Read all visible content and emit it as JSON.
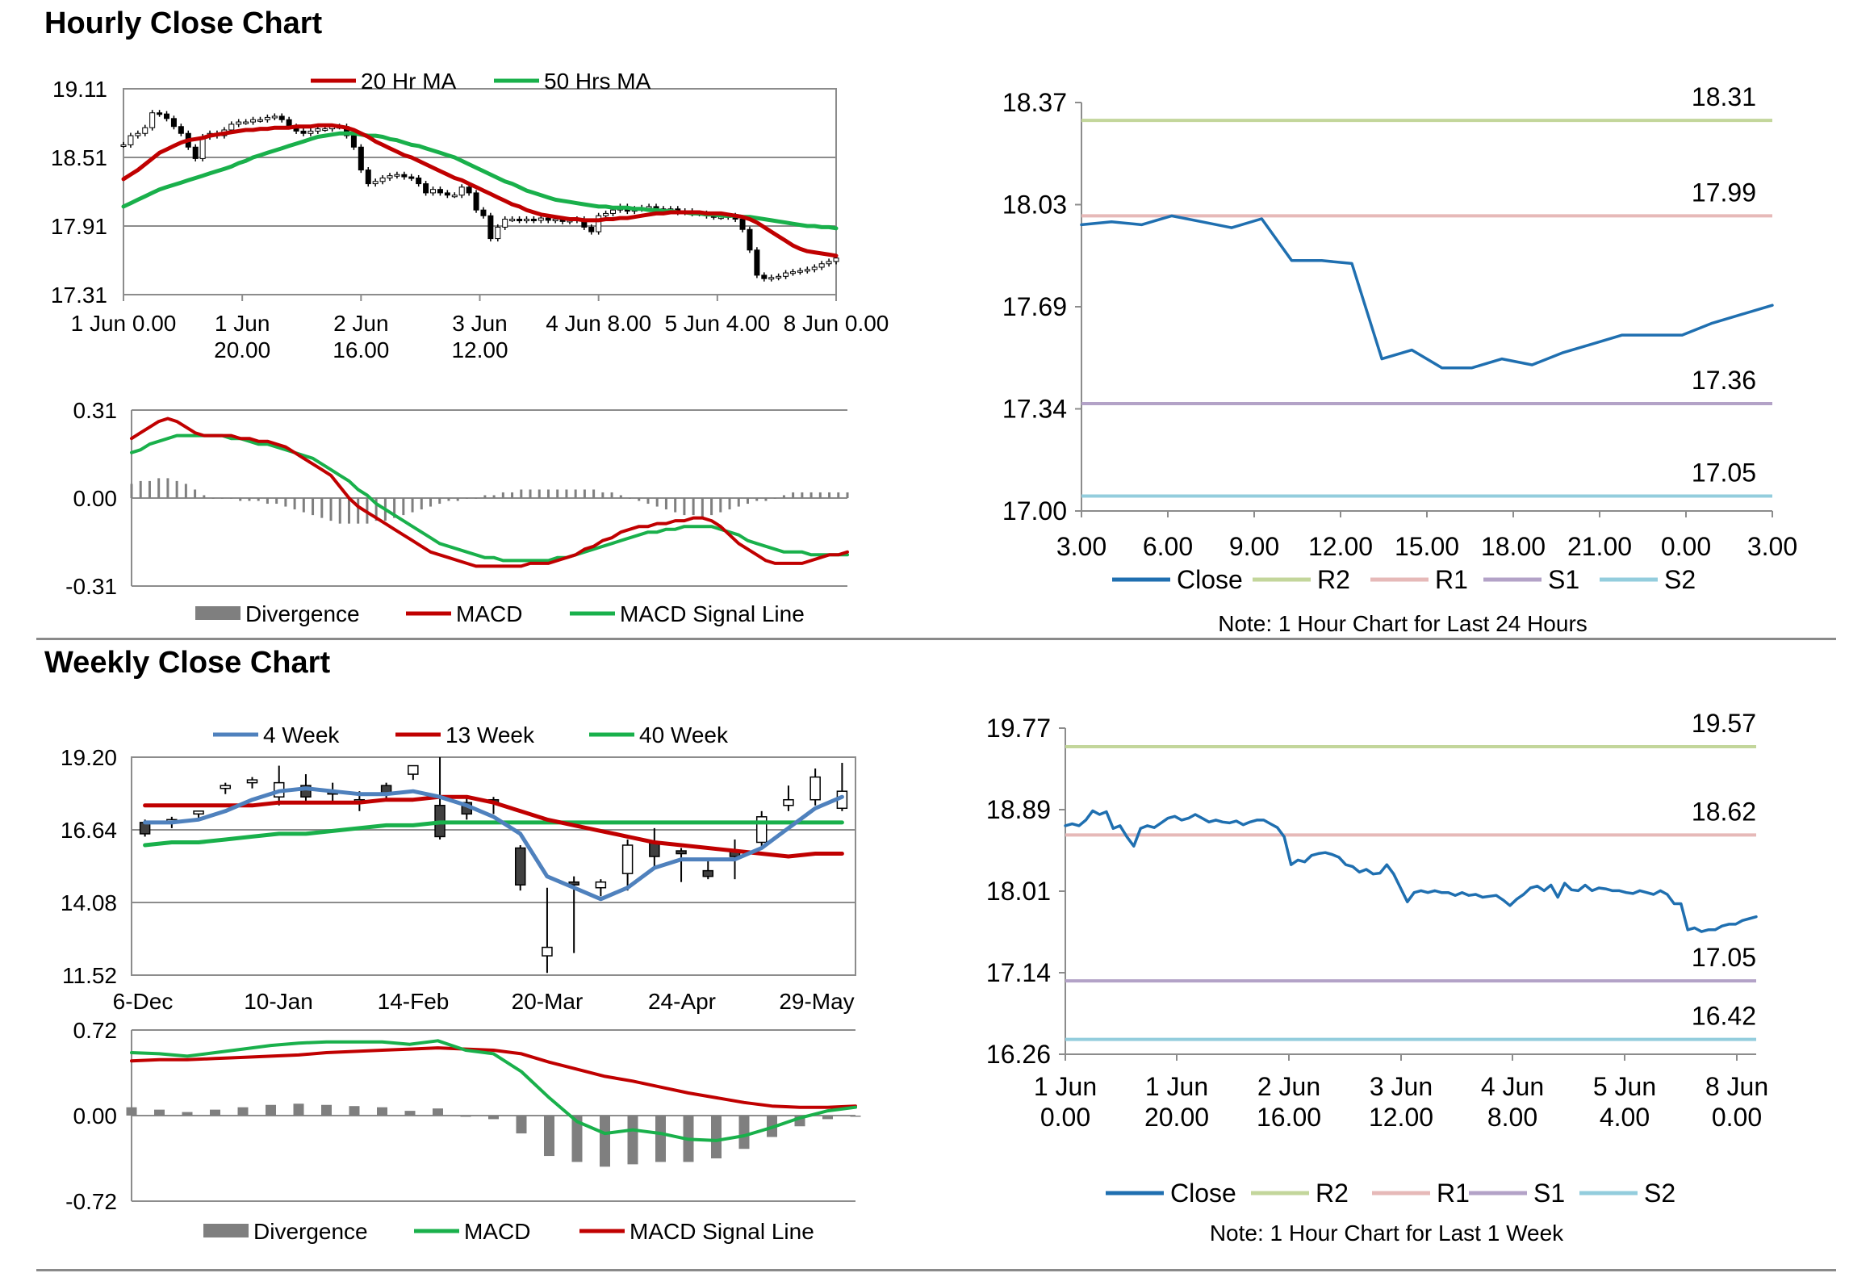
{
  "sections": {
    "hourly_title": "Hourly Close Chart",
    "weekly_title": "Weekly Close Chart"
  },
  "colors": {
    "ma_red": "#c00000",
    "ma_green": "#19b04b",
    "blue_line": "#4f81bd",
    "close_blue": "#1f6fb0",
    "r2": "#c3d69b",
    "r1": "#e6b9b8",
    "s1": "#b3a2c7",
    "s2": "#93cddd",
    "divergence": "#7f7f7f",
    "grid": "#8c8c8c"
  },
  "chart_data": [
    {
      "id": "hourly_candles",
      "type": "candlestick",
      "legend": [
        "20 Hr MA",
        "50 Hrs MA"
      ],
      "y_ticks": [
        "19.11",
        "18.51",
        "17.91",
        "17.31"
      ],
      "ylim": [
        17.31,
        19.11
      ],
      "x_ticks": [
        [
          "1 Jun 0.00",
          ""
        ],
        [
          "1 Jun",
          "20.00"
        ],
        [
          "2 Jun",
          "16.00"
        ],
        [
          "3 Jun",
          "12.00"
        ],
        [
          "4 Jun 8.00",
          ""
        ],
        [
          "5 Jun 4.00",
          ""
        ],
        [
          "8 Jun 0.00",
          ""
        ]
      ],
      "close": [
        18.62,
        18.7,
        18.72,
        18.77,
        18.9,
        18.89,
        18.85,
        18.78,
        18.72,
        18.6,
        18.5,
        18.69,
        18.72,
        18.7,
        18.75,
        18.8,
        18.82,
        18.82,
        18.84,
        18.84,
        18.86,
        18.87,
        18.84,
        18.78,
        18.74,
        18.72,
        18.74,
        18.76,
        18.76,
        18.78,
        18.78,
        18.7,
        18.6,
        18.4,
        18.28,
        18.3,
        18.33,
        18.35,
        18.36,
        18.34,
        18.33,
        18.28,
        18.2,
        18.23,
        18.2,
        18.18,
        18.18,
        18.25,
        18.2,
        18.05,
        18.0,
        17.8,
        17.9,
        17.97,
        17.97,
        17.96,
        17.97,
        17.96,
        17.98,
        17.96,
        17.97,
        17.95,
        17.96,
        17.97,
        17.9,
        17.86,
        18.0,
        18.02,
        18.05,
        18.08,
        18.04,
        18.06,
        18.07,
        18.08,
        18.06,
        18.04,
        18.06,
        18.03,
        18.04,
        18.02,
        18.02,
        18.0,
        17.99,
        17.99,
        18.0,
        17.97,
        17.88,
        17.7,
        17.48,
        17.45,
        17.46,
        17.47,
        17.5,
        17.51,
        17.52,
        17.53,
        17.55,
        17.58,
        17.6,
        17.63
      ],
      "ma20": [
        18.32,
        18.36,
        18.4,
        18.45,
        18.5,
        18.55,
        18.58,
        18.61,
        18.64,
        18.66,
        18.67,
        18.68,
        18.7,
        18.71,
        18.72,
        18.73,
        18.74,
        18.75,
        18.75,
        18.76,
        18.76,
        18.77,
        18.77,
        18.77,
        18.78,
        18.78,
        18.78,
        18.79,
        18.79,
        18.79,
        18.78,
        18.77,
        18.75,
        18.72,
        18.69,
        18.65,
        18.62,
        18.59,
        18.56,
        18.53,
        18.51,
        18.48,
        18.45,
        18.42,
        18.39,
        18.36,
        18.33,
        18.31,
        18.28,
        18.25,
        18.22,
        18.19,
        18.16,
        18.13,
        18.1,
        18.08,
        18.05,
        18.03,
        18.01,
        18.0,
        17.99,
        17.98,
        17.97,
        17.97,
        17.96,
        17.96,
        17.96,
        17.97,
        17.97,
        17.98,
        17.98,
        17.99,
        18.0,
        18.01,
        18.02,
        18.02,
        18.03,
        18.03,
        18.03,
        18.03,
        18.03,
        18.02,
        18.02,
        18.02,
        18.01,
        18.0,
        17.99,
        17.97,
        17.94,
        17.9,
        17.86,
        17.82,
        17.78,
        17.74,
        17.71,
        17.69,
        17.68,
        17.67,
        17.66,
        17.65
      ],
      "ma50": [
        18.08,
        18.11,
        18.14,
        18.17,
        18.2,
        18.23,
        18.25,
        18.27,
        18.29,
        18.31,
        18.33,
        18.35,
        18.37,
        18.39,
        18.41,
        18.43,
        18.46,
        18.48,
        18.51,
        18.53,
        18.55,
        18.57,
        18.59,
        18.61,
        18.63,
        18.65,
        18.67,
        18.69,
        18.7,
        18.71,
        18.72,
        18.72,
        18.72,
        18.71,
        18.7,
        18.7,
        18.69,
        18.67,
        18.66,
        18.64,
        18.62,
        18.61,
        18.59,
        18.57,
        18.55,
        18.53,
        18.51,
        18.48,
        18.45,
        18.42,
        18.39,
        18.36,
        18.33,
        18.3,
        18.28,
        18.25,
        18.22,
        18.2,
        18.18,
        18.16,
        18.14,
        18.13,
        18.12,
        18.11,
        18.1,
        18.09,
        18.08,
        18.08,
        18.07,
        18.07,
        18.07,
        18.06,
        18.06,
        18.05,
        18.05,
        18.04,
        18.04,
        18.03,
        18.03,
        18.02,
        18.02,
        18.01,
        18.01,
        18.0,
        18.0,
        18.0,
        17.99,
        17.99,
        17.98,
        17.97,
        17.96,
        17.95,
        17.94,
        17.93,
        17.92,
        17.91,
        17.91,
        17.9,
        17.9,
        17.89
      ]
    },
    {
      "id": "hourly_macd",
      "type": "macd",
      "y_ticks": [
        "0.31",
        "0.00",
        "-0.31"
      ],
      "ylim": [
        -0.31,
        0.31
      ],
      "legend": [
        "Divergence",
        "MACD",
        "MACD Signal Line"
      ],
      "macd": [
        0.21,
        0.23,
        0.25,
        0.27,
        0.28,
        0.27,
        0.25,
        0.23,
        0.22,
        0.22,
        0.22,
        0.22,
        0.21,
        0.21,
        0.2,
        0.2,
        0.19,
        0.18,
        0.16,
        0.14,
        0.12,
        0.1,
        0.08,
        0.04,
        0.0,
        -0.03,
        -0.05,
        -0.07,
        -0.09,
        -0.11,
        -0.13,
        -0.15,
        -0.17,
        -0.19,
        -0.2,
        -0.21,
        -0.22,
        -0.23,
        -0.24,
        -0.24,
        -0.24,
        -0.24,
        -0.24,
        -0.24,
        -0.23,
        -0.23,
        -0.23,
        -0.22,
        -0.21,
        -0.2,
        -0.18,
        -0.17,
        -0.15,
        -0.14,
        -0.12,
        -0.11,
        -0.1,
        -0.1,
        -0.09,
        -0.09,
        -0.08,
        -0.08,
        -0.07,
        -0.07,
        -0.08,
        -0.1,
        -0.13,
        -0.16,
        -0.18,
        -0.2,
        -0.22,
        -0.23,
        -0.23,
        -0.23,
        -0.23,
        -0.22,
        -0.21,
        -0.2,
        -0.2,
        -0.19
      ],
      "signal": [
        0.16,
        0.17,
        0.19,
        0.2,
        0.21,
        0.22,
        0.22,
        0.22,
        0.22,
        0.22,
        0.22,
        0.21,
        0.21,
        0.2,
        0.19,
        0.19,
        0.18,
        0.17,
        0.16,
        0.15,
        0.14,
        0.12,
        0.1,
        0.08,
        0.06,
        0.03,
        0.01,
        -0.02,
        -0.04,
        -0.06,
        -0.08,
        -0.1,
        -0.12,
        -0.14,
        -0.16,
        -0.17,
        -0.18,
        -0.19,
        -0.2,
        -0.21,
        -0.21,
        -0.22,
        -0.22,
        -0.22,
        -0.22,
        -0.22,
        -0.22,
        -0.21,
        -0.21,
        -0.2,
        -0.19,
        -0.18,
        -0.17,
        -0.16,
        -0.15,
        -0.14,
        -0.13,
        -0.12,
        -0.12,
        -0.11,
        -0.11,
        -0.1,
        -0.1,
        -0.1,
        -0.1,
        -0.11,
        -0.12,
        -0.13,
        -0.15,
        -0.16,
        -0.17,
        -0.18,
        -0.19,
        -0.19,
        -0.19,
        -0.2,
        -0.2,
        -0.2,
        -0.2,
        -0.2
      ],
      "divergence": [
        0.05,
        0.06,
        0.06,
        0.07,
        0.07,
        0.06,
        0.05,
        0.03,
        0.01,
        0.0,
        0.0,
        0.0,
        -0.01,
        -0.01,
        -0.01,
        -0.02,
        -0.02,
        -0.03,
        -0.04,
        -0.05,
        -0.06,
        -0.07,
        -0.08,
        -0.09,
        -0.09,
        -0.09,
        -0.09,
        -0.08,
        -0.08,
        -0.07,
        -0.06,
        -0.05,
        -0.04,
        -0.03,
        -0.02,
        -0.01,
        -0.01,
        0.0,
        0.0,
        0.01,
        0.01,
        0.02,
        0.02,
        0.03,
        0.03,
        0.03,
        0.03,
        0.03,
        0.03,
        0.03,
        0.03,
        0.03,
        0.02,
        0.02,
        0.01,
        0.0,
        -0.01,
        -0.02,
        -0.03,
        -0.04,
        -0.05,
        -0.06,
        -0.06,
        -0.07,
        -0.06,
        -0.05,
        -0.04,
        -0.03,
        -0.02,
        -0.01,
        -0.01,
        0.0,
        0.01,
        0.02,
        0.02,
        0.02,
        0.02,
        0.02,
        0.02,
        0.02
      ]
    },
    {
      "id": "hourly_24h",
      "type": "line",
      "y_ticks": [
        "18.37",
        "18.03",
        "17.69",
        "17.34",
        "17.00"
      ],
      "ylim": [
        17.0,
        18.37
      ],
      "x_ticks": [
        "3.00",
        "6.00",
        "9.00",
        "12.00",
        "15.00",
        "18.00",
        "21.00",
        "0.00",
        "3.00"
      ],
      "close": [
        17.96,
        17.97,
        17.96,
        17.99,
        17.97,
        17.95,
        17.98,
        17.84,
        17.84,
        17.83,
        17.51,
        17.54,
        17.48,
        17.48,
        17.51,
        17.49,
        17.53,
        17.56,
        17.59,
        17.59,
        17.59,
        17.63,
        17.66,
        17.69
      ],
      "levels": [
        {
          "name": "R2",
          "value": 18.31,
          "label": "18.31"
        },
        {
          "name": "R1",
          "value": 17.99,
          "label": "17.99"
        },
        {
          "name": "S1",
          "value": 17.36,
          "label": "17.36"
        },
        {
          "name": "S2",
          "value": 17.05,
          "label": "17.05"
        }
      ],
      "legend": [
        "Close",
        "R2",
        "R1",
        "S1",
        "S2"
      ],
      "note": "Note: 1 Hour Chart for Last 24 Hours"
    },
    {
      "id": "weekly_candles",
      "type": "candlestick",
      "legend": [
        "4 Week",
        "13 Week",
        "40 Week"
      ],
      "y_ticks": [
        "19.20",
        "16.64",
        "14.08",
        "11.52"
      ],
      "ylim": [
        11.52,
        19.2
      ],
      "x_ticks": [
        "6-Dec",
        "10-Jan",
        "14-Feb",
        "20-Mar",
        "24-Apr",
        "29-May"
      ],
      "candles": [
        {
          "o": 16.9,
          "h": 17.0,
          "c": 16.5,
          "l": 16.4
        },
        {
          "o": 16.9,
          "h": 17.1,
          "c": 17.0,
          "l": 16.7
        },
        {
          "o": 17.2,
          "h": 17.3,
          "c": 17.3,
          "l": 17.0
        },
        {
          "o": 18.1,
          "h": 18.3,
          "c": 18.2,
          "l": 17.9
        },
        {
          "o": 18.3,
          "h": 18.5,
          "c": 18.4,
          "l": 18.1
        },
        {
          "o": 17.8,
          "h": 18.9,
          "c": 18.3,
          "l": 17.5
        },
        {
          "o": 18.2,
          "h": 18.6,
          "c": 17.8,
          "l": 17.6
        },
        {
          "o": 18.0,
          "h": 18.3,
          "c": 17.9,
          "l": 17.6
        },
        {
          "o": 17.6,
          "h": 18.0,
          "c": 17.7,
          "l": 17.3
        },
        {
          "o": 18.2,
          "h": 18.3,
          "c": 17.9,
          "l": 17.7
        },
        {
          "o": 18.6,
          "h": 18.9,
          "c": 18.9,
          "l": 18.4
        },
        {
          "o": 17.5,
          "h": 19.2,
          "c": 16.4,
          "l": 16.3
        },
        {
          "o": 17.6,
          "h": 17.8,
          "c": 17.2,
          "l": 17.0
        },
        {
          "o": 17.7,
          "h": 17.8,
          "c": 17.6,
          "l": 17.2
        },
        {
          "o": 16.0,
          "h": 16.1,
          "c": 14.7,
          "l": 14.5
        },
        {
          "o": 12.2,
          "h": 14.6,
          "c": 12.5,
          "l": 11.6
        },
        {
          "o": 14.8,
          "h": 15.0,
          "c": 14.7,
          "l": 12.3
        },
        {
          "o": 14.6,
          "h": 14.9,
          "c": 14.8,
          "l": 14.3
        },
        {
          "o": 15.1,
          "h": 16.3,
          "c": 16.1,
          "l": 14.5
        },
        {
          "o": 16.2,
          "h": 16.7,
          "c": 15.7,
          "l": 15.3
        },
        {
          "o": 15.9,
          "h": 16.0,
          "c": 15.8,
          "l": 14.8
        },
        {
          "o": 15.2,
          "h": 15.6,
          "c": 15.0,
          "l": 14.9
        },
        {
          "o": 15.9,
          "h": 16.3,
          "c": 15.7,
          "l": 14.9
        },
        {
          "o": 16.2,
          "h": 17.3,
          "c": 17.1,
          "l": 16.0
        },
        {
          "o": 17.5,
          "h": 18.2,
          "c": 17.7,
          "l": 17.3
        },
        {
          "o": 17.7,
          "h": 18.8,
          "c": 18.5,
          "l": 17.5
        },
        {
          "o": 17.4,
          "h": 19.0,
          "c": 18.0,
          "l": 17.3
        }
      ],
      "w4": [
        16.9,
        16.9,
        17.0,
        17.3,
        17.7,
        18.0,
        18.1,
        18.0,
        17.9,
        17.9,
        18.0,
        17.8,
        17.5,
        17.1,
        16.5,
        15.0,
        14.6,
        14.2,
        14.6,
        15.3,
        15.6,
        15.6,
        15.6,
        16.0,
        16.7,
        17.4,
        17.8
      ],
      "w13": [
        17.5,
        17.5,
        17.5,
        17.5,
        17.5,
        17.6,
        17.6,
        17.6,
        17.6,
        17.7,
        17.7,
        17.8,
        17.8,
        17.6,
        17.3,
        17.0,
        16.8,
        16.6,
        16.4,
        16.2,
        16.1,
        16.0,
        15.9,
        15.8,
        15.7,
        15.8,
        15.8
      ],
      "w40": [
        16.1,
        16.2,
        16.2,
        16.3,
        16.4,
        16.5,
        16.5,
        16.6,
        16.7,
        16.8,
        16.8,
        16.9,
        16.9,
        16.9,
        16.9,
        16.9,
        16.9,
        16.9,
        16.9,
        16.9,
        16.9,
        16.9,
        16.9,
        16.9,
        16.9,
        16.9,
        16.9
      ]
    },
    {
      "id": "weekly_macd",
      "type": "macd",
      "y_ticks": [
        "0.72",
        "0.00",
        "-0.72"
      ],
      "ylim": [
        -0.72,
        0.72
      ],
      "legend": [
        "Divergence",
        "MACD",
        "MACD Signal Line"
      ],
      "macd": [
        0.53,
        0.52,
        0.5,
        0.53,
        0.56,
        0.59,
        0.61,
        0.62,
        0.62,
        0.62,
        0.6,
        0.63,
        0.55,
        0.52,
        0.37,
        0.15,
        -0.05,
        -0.15,
        -0.12,
        -0.15,
        -0.2,
        -0.21,
        -0.17,
        -0.1,
        -0.02,
        0.04,
        0.07
      ],
      "signal": [
        0.46,
        0.47,
        0.47,
        0.48,
        0.49,
        0.5,
        0.51,
        0.53,
        0.54,
        0.55,
        0.56,
        0.57,
        0.56,
        0.55,
        0.52,
        0.45,
        0.39,
        0.33,
        0.29,
        0.24,
        0.19,
        0.15,
        0.11,
        0.08,
        0.07,
        0.07,
        0.08
      ],
      "divergence": [
        0.07,
        0.05,
        0.03,
        0.05,
        0.07,
        0.09,
        0.1,
        0.09,
        0.08,
        0.07,
        0.04,
        0.06,
        -0.01,
        -0.03,
        -0.15,
        -0.34,
        -0.39,
        -0.43,
        -0.41,
        -0.39,
        -0.39,
        -0.36,
        -0.28,
        -0.18,
        -0.09,
        -0.03,
        -0.01
      ]
    },
    {
      "id": "weekly_1w",
      "type": "line",
      "y_ticks": [
        "19.77",
        "18.89",
        "18.01",
        "17.14",
        "16.26"
      ],
      "ylim": [
        16.26,
        19.77
      ],
      "x_ticks": [
        [
          "1 Jun",
          "0.00"
        ],
        [
          "1 Jun",
          "20.00"
        ],
        [
          "2 Jun",
          "16.00"
        ],
        [
          "3 Jun",
          "12.00"
        ],
        [
          "4 Jun",
          "8.00"
        ],
        [
          "5 Jun",
          "4.00"
        ],
        [
          "8 Jun",
          "0.00"
        ]
      ],
      "close": [
        18.72,
        18.74,
        18.72,
        18.78,
        18.88,
        18.84,
        18.87,
        18.69,
        18.72,
        18.6,
        18.5,
        18.69,
        18.72,
        18.7,
        18.75,
        18.8,
        18.82,
        18.78,
        18.8,
        18.84,
        18.8,
        18.76,
        18.78,
        18.76,
        18.75,
        18.77,
        18.73,
        18.76,
        18.78,
        18.78,
        18.74,
        18.7,
        18.6,
        18.3,
        18.35,
        18.33,
        18.4,
        18.42,
        18.43,
        18.41,
        18.38,
        18.3,
        18.28,
        18.22,
        18.25,
        18.2,
        18.21,
        18.3,
        18.2,
        18.05,
        17.9,
        18.0,
        18.02,
        18.0,
        18.02,
        18.0,
        18.0,
        17.97,
        18.0,
        17.97,
        17.98,
        17.95,
        17.96,
        17.97,
        17.92,
        17.86,
        17.93,
        17.98,
        18.05,
        18.07,
        18.02,
        18.08,
        17.95,
        18.1,
        18.03,
        18.02,
        18.08,
        18.02,
        18.05,
        18.04,
        18.02,
        18.02,
        18.0,
        17.99,
        18.02,
        18.0,
        17.98,
        18.02,
        17.98,
        17.88,
        17.88,
        17.6,
        17.62,
        17.58,
        17.6,
        17.6,
        17.64,
        17.66,
        17.66,
        17.7,
        17.72,
        17.74
      ],
      "levels": [
        {
          "name": "R2",
          "value": 19.57,
          "label": "19.57"
        },
        {
          "name": "R1",
          "value": 18.62,
          "label": "18.62"
        },
        {
          "name": "S1",
          "value": 17.05,
          "label": "17.05"
        },
        {
          "name": "S2",
          "value": 16.42,
          "label": "16.42"
        }
      ],
      "legend": [
        "Close",
        "R2",
        "R1",
        "S1",
        "S2"
      ],
      "note": "Note: 1 Hour Chart for Last 1 Week"
    }
  ]
}
